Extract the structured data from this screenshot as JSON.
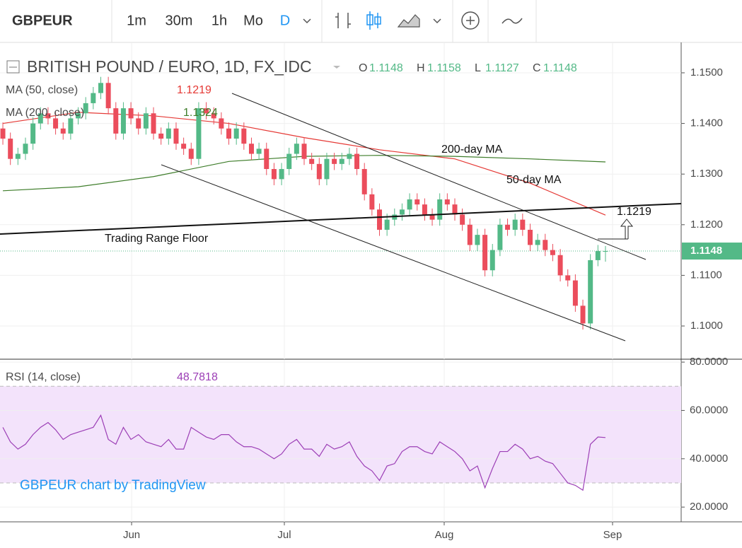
{
  "toolbar": {
    "symbol": "GBPEUR",
    "intervals": [
      "1m",
      "30m",
      "1h",
      "Mo",
      "D"
    ]
  },
  "chart_data": [
    {
      "type": "candlestick",
      "title": "BRITISH POUND / EURO, 1D, FX_IDC",
      "ohlc_header": [
        {
          "label": "O",
          "value": "1.1148"
        },
        {
          "label": "H",
          "value": "1.1158"
        },
        {
          "label": "L",
          "value": "1.1127"
        },
        {
          "label": "C",
          "value": "1.1148"
        }
      ],
      "up_color": "#53b987",
      "down_color": "#eb4d5c",
      "xlim": [
        -0.38,
        90.05
      ],
      "xticks": [
        {
          "value": 17.09,
          "label": "Jun"
        },
        {
          "value": 37.37,
          "label": "Jul"
        },
        {
          "value": 58.59,
          "label": "Aug"
        },
        {
          "value": 80.94,
          "label": "Sep"
        }
      ],
      "ylim": [
        1.09344,
        1.156
      ],
      "yticks": [
        {
          "value": 1.1,
          "label": "1.1000"
        },
        {
          "value": 1.11,
          "label": "1.1100"
        },
        {
          "value": 1.12,
          "label": "1.1200"
        },
        {
          "value": 1.13,
          "label": "1.1300"
        },
        {
          "value": 1.14,
          "label": "1.1400"
        },
        {
          "value": 1.15,
          "label": "1.1500"
        }
      ],
      "last_price": {
        "value": 1.1148,
        "label": "1.1148"
      },
      "x": [
        0,
        1,
        2,
        3,
        4,
        5,
        6,
        7,
        8,
        9,
        10,
        11,
        12,
        13,
        14,
        15,
        16,
        17,
        18,
        19,
        20,
        21,
        22,
        23,
        24,
        25,
        26,
        27,
        28,
        29,
        30,
        31,
        32,
        33,
        34,
        35,
        36,
        37,
        38,
        39,
        40,
        41,
        42,
        43,
        44,
        45,
        46,
        47,
        48,
        49,
        50,
        51,
        52,
        53,
        54,
        55,
        56,
        57,
        58,
        59,
        60,
        61,
        62,
        63,
        64,
        65,
        66,
        67,
        68,
        69,
        70,
        71,
        72,
        73,
        74,
        75,
        76,
        77,
        78,
        79,
        80
      ],
      "open": [
        1.139,
        1.137,
        1.133,
        1.134,
        1.136,
        1.14,
        1.142,
        1.141,
        1.139,
        1.138,
        1.141,
        1.142,
        1.144,
        1.146,
        1.148,
        1.143,
        1.138,
        1.143,
        1.141,
        1.139,
        1.142,
        1.138,
        1.137,
        1.139,
        1.136,
        1.135,
        1.133,
        1.143,
        1.142,
        1.141,
        1.139,
        1.137,
        1.139,
        1.136,
        1.134,
        1.135,
        1.131,
        1.129,
        1.131,
        1.134,
        1.136,
        1.133,
        1.132,
        1.129,
        1.133,
        1.132,
        1.133,
        1.134,
        1.131,
        1.126,
        1.123,
        1.119,
        1.121,
        1.122,
        1.123,
        1.125,
        1.124,
        1.122,
        1.121,
        1.125,
        1.124,
        1.122,
        1.12,
        1.116,
        1.118,
        1.111,
        1.115,
        1.12,
        1.119,
        1.121,
        1.119,
        1.116,
        1.117,
        1.115,
        1.114,
        1.11,
        1.109,
        1.104,
        1.1005,
        1.113,
        1.1148
      ],
      "high": [
        1.1402,
        1.1382,
        1.1352,
        1.1372,
        1.1412,
        1.1432,
        1.1432,
        1.1422,
        1.1402,
        1.1422,
        1.1432,
        1.1452,
        1.1472,
        1.1492,
        1.1492,
        1.1442,
        1.1442,
        1.1442,
        1.1422,
        1.1432,
        1.1432,
        1.1392,
        1.1402,
        1.1402,
        1.1372,
        1.1362,
        1.1442,
        1.1442,
        1.1432,
        1.1422,
        1.1402,
        1.1402,
        1.1402,
        1.1372,
        1.1362,
        1.1362,
        1.1322,
        1.1322,
        1.1352,
        1.1372,
        1.1372,
        1.1342,
        1.1332,
        1.1342,
        1.1342,
        1.1342,
        1.1352,
        1.1352,
        1.1322,
        1.1272,
        1.1242,
        1.1222,
        1.1232,
        1.1242,
        1.1262,
        1.1262,
        1.1252,
        1.1232,
        1.1262,
        1.1262,
        1.1252,
        1.1232,
        1.1212,
        1.1192,
        1.1192,
        1.1162,
        1.1212,
        1.1212,
        1.1222,
        1.1222,
        1.1202,
        1.1182,
        1.1182,
        1.1162,
        1.1152,
        1.1112,
        1.1102,
        1.1052,
        1.1142,
        1.116,
        1.1158
      ],
      "low": [
        1.1358,
        1.1318,
        1.1318,
        1.1328,
        1.1348,
        1.1388,
        1.1398,
        1.1378,
        1.1368,
        1.1368,
        1.1398,
        1.1408,
        1.1428,
        1.1448,
        1.1418,
        1.1368,
        1.1368,
        1.1398,
        1.1378,
        1.1378,
        1.1368,
        1.1358,
        1.1358,
        1.1348,
        1.1338,
        1.1318,
        1.1318,
        1.1408,
        1.1398,
        1.1378,
        1.1358,
        1.1358,
        1.1348,
        1.1328,
        1.1328,
        1.1298,
        1.1278,
        1.1278,
        1.1298,
        1.1328,
        1.1318,
        1.1308,
        1.1278,
        1.1278,
        1.1308,
        1.1308,
        1.1318,
        1.1298,
        1.1248,
        1.1218,
        1.1178,
        1.1178,
        1.1198,
        1.1208,
        1.1218,
        1.1228,
        1.1208,
        1.1198,
        1.1198,
        1.1228,
        1.1208,
        1.1188,
        1.1148,
        1.1148,
        1.1098,
        1.1098,
        1.1138,
        1.1178,
        1.1178,
        1.1178,
        1.1148,
        1.1148,
        1.1138,
        1.1128,
        1.1088,
        1.1078,
        1.1028,
        1.0993,
        1.0993,
        1.1118,
        1.1127
      ],
      "close": [
        1.137,
        1.133,
        1.134,
        1.136,
        1.14,
        1.142,
        1.141,
        1.139,
        1.138,
        1.141,
        1.142,
        1.144,
        1.146,
        1.148,
        1.143,
        1.138,
        1.143,
        1.141,
        1.139,
        1.142,
        1.138,
        1.137,
        1.139,
        1.136,
        1.135,
        1.133,
        1.143,
        1.142,
        1.141,
        1.139,
        1.137,
        1.139,
        1.136,
        1.134,
        1.135,
        1.131,
        1.129,
        1.131,
        1.134,
        1.136,
        1.133,
        1.132,
        1.129,
        1.133,
        1.132,
        1.133,
        1.134,
        1.131,
        1.126,
        1.123,
        1.119,
        1.121,
        1.122,
        1.123,
        1.125,
        1.124,
        1.122,
        1.121,
        1.125,
        1.124,
        1.122,
        1.12,
        1.116,
        1.118,
        1.111,
        1.115,
        1.12,
        1.119,
        1.121,
        1.119,
        1.116,
        1.117,
        1.115,
        1.114,
        1.11,
        1.109,
        1.104,
        1.1005,
        1.113,
        1.1148,
        1.1148
      ],
      "indicators": [
        {
          "name": "MA (50, close)",
          "value_label": "1.1219",
          "color": "#e53935",
          "x": [
            0,
            10,
            20,
            30,
            40,
            50,
            60,
            70,
            80
          ],
          "values": [
            1.14,
            1.1422,
            1.1415,
            1.14,
            1.1372,
            1.1348,
            1.133,
            1.1282,
            1.1219
          ]
        },
        {
          "name": "MA (200, close)",
          "value_label": "1.1324",
          "color": "#3e7d2a",
          "x": [
            0,
            10,
            20,
            30,
            40,
            50,
            60,
            70,
            80
          ],
          "values": [
            1.1267,
            1.1275,
            1.1295,
            1.1325,
            1.1335,
            1.1337,
            1.1335,
            1.133,
            1.1324
          ]
        }
      ],
      "annotations": {
        "ma200": "200-day MA",
        "ma50": "50-day MA",
        "floor": "Trading Range Floor",
        "target": "1.1219"
      }
    },
    {
      "type": "line",
      "name": "RSI (14, close)",
      "value_label": "48.7818",
      "color": "#9c3fb6",
      "band": [
        30,
        70
      ],
      "band_color": "#f3e3fb",
      "watermark": "GBPEUR chart by TradingView",
      "ylim": [
        13.9,
        81.2
      ],
      "yticks": [
        {
          "value": 20,
          "label": "20.0000"
        },
        {
          "value": 40,
          "label": "40.0000"
        },
        {
          "value": 60,
          "label": "60.0000"
        },
        {
          "value": 80,
          "label": "80.0000"
        }
      ],
      "values": [
        53,
        47,
        44,
        46,
        50,
        53,
        55,
        52,
        48,
        50,
        51,
        52,
        53,
        58,
        48,
        46,
        53,
        48,
        50,
        47,
        46,
        45,
        48,
        44,
        44,
        53,
        51,
        49,
        48,
        50,
        50,
        47,
        45,
        45,
        44,
        42,
        40,
        42,
        46,
        48,
        44,
        44,
        41,
        46,
        44,
        45,
        47,
        41,
        37,
        35,
        31,
        37,
        38,
        43,
        45,
        45,
        43,
        42,
        47,
        45,
        43,
        40,
        35,
        37,
        28,
        36,
        43,
        43,
        46,
        44,
        40,
        41,
        39,
        38,
        34,
        30,
        29,
        27,
        46,
        49,
        48.7818
      ]
    }
  ]
}
